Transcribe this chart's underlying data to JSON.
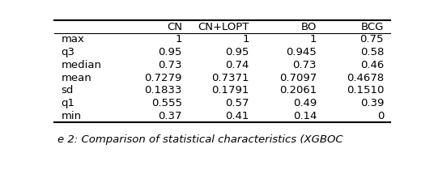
{
  "columns": [
    "CN",
    "CN+LOPT",
    "BO",
    "BCG"
  ],
  "rows": [
    "max",
    "q3",
    "median",
    "mean",
    "sd",
    "q1",
    "min"
  ],
  "data": [
    [
      "1",
      "1",
      "1",
      "0.75"
    ],
    [
      "0.95",
      "0.95",
      "0.945",
      "0.58"
    ],
    [
      "0.73",
      "0.74",
      "0.73",
      "0.46"
    ],
    [
      "0.7279",
      "0.7371",
      "0.7097",
      "0.4678"
    ],
    [
      "0.1833",
      "0.1791",
      "0.2061",
      "0.1510"
    ],
    [
      "0.555",
      "0.57",
      "0.49",
      "0.39"
    ],
    [
      "0.37",
      "0.41",
      "0.14",
      "0"
    ]
  ],
  "caption": "e 2: Comparison of statistical characteristics (XGBOC",
  "background_color": "#ffffff",
  "font_size": 9.5,
  "caption_font_size": 9.5
}
